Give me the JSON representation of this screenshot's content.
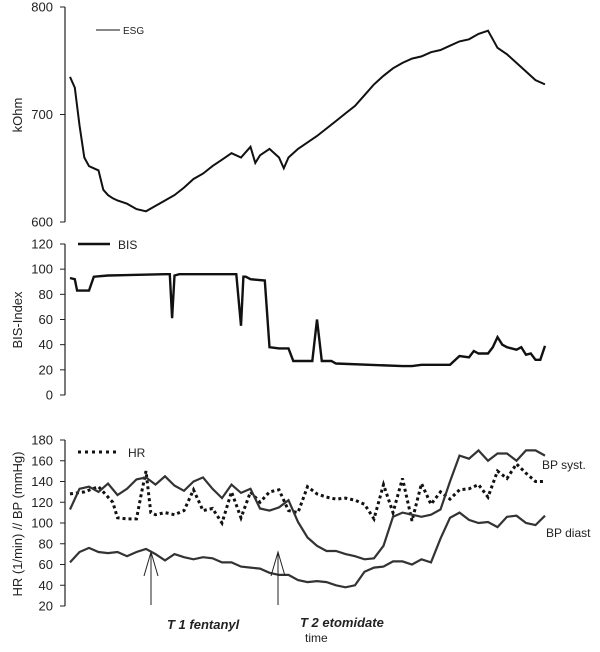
{
  "chart_data": [
    {
      "type": "line",
      "title": "",
      "ylabel": "kOhm",
      "ylim": [
        600,
        800
      ],
      "yticks": [
        600,
        700,
        800
      ],
      "xlim": [
        0,
        100
      ],
      "series": [
        {
          "name": "ESG",
          "x": [
            0,
            1,
            2,
            3,
            4,
            5,
            6,
            7,
            8,
            9,
            10,
            12,
            14,
            16,
            18,
            20,
            22,
            24,
            26,
            28,
            30,
            32,
            34,
            36,
            38,
            39,
            40,
            42,
            44,
            45,
            46,
            48,
            50,
            52,
            54,
            56,
            58,
            60,
            62,
            64,
            66,
            68,
            70,
            72,
            74,
            76,
            78,
            80,
            82,
            84,
            86,
            88,
            89,
            90,
            92,
            94,
            96,
            98,
            100
          ],
          "y": [
            735,
            725,
            690,
            660,
            652,
            650,
            648,
            630,
            625,
            622,
            620,
            617,
            612,
            610,
            615,
            620,
            625,
            632,
            640,
            645,
            652,
            658,
            664,
            660,
            670,
            655,
            662,
            668,
            660,
            650,
            660,
            668,
            674,
            680,
            687,
            694,
            701,
            708,
            718,
            728,
            736,
            743,
            748,
            752,
            754,
            758,
            760,
            764,
            768,
            770,
            775,
            778,
            770,
            762,
            756,
            748,
            740,
            732,
            728
          ]
        }
      ]
    },
    {
      "type": "line",
      "title": "",
      "ylabel": "BIS-Index",
      "ylim": [
        0,
        120
      ],
      "yticks": [
        0,
        20,
        40,
        60,
        80,
        100,
        120
      ],
      "xlim": [
        0,
        100
      ],
      "series": [
        {
          "name": "BIS",
          "x": [
            0,
            1,
            1.5,
            4,
            5,
            8,
            20,
            21,
            21.5,
            22,
            23,
            35,
            36,
            36.5,
            37,
            38,
            41,
            42,
            44,
            46,
            47,
            48,
            51,
            52,
            53,
            54,
            55,
            56,
            70,
            72,
            74,
            80,
            82,
            84,
            85,
            86,
            88,
            89,
            90,
            91,
            92,
            94,
            95,
            96,
            97,
            98,
            99,
            100
          ],
          "y": [
            93,
            92,
            83,
            83,
            94,
            95,
            96,
            96,
            61,
            95,
            96,
            96,
            55,
            94,
            94,
            92,
            91,
            38,
            37,
            37,
            27,
            27,
            27,
            60,
            27,
            27,
            27,
            25,
            23,
            23,
            24,
            24,
            31,
            30,
            35,
            33,
            33,
            38,
            46,
            40,
            38,
            36,
            38,
            32,
            33,
            28,
            28,
            39
          ]
        }
      ]
    },
    {
      "type": "line",
      "title": "",
      "xlabel": "time",
      "ylabel": "HR (1/min) // BP (mmHg)",
      "ylim": [
        20,
        180
      ],
      "yticks": [
        20,
        40,
        60,
        80,
        100,
        120,
        140,
        160,
        180
      ],
      "xlim": [
        0,
        100
      ],
      "series": [
        {
          "name": "HR",
          "x": [
            0,
            3,
            6,
            9,
            10,
            12,
            14,
            15,
            16,
            17,
            18,
            20,
            22,
            24,
            26,
            28,
            30,
            32,
            34,
            36,
            38,
            40,
            42,
            44,
            46,
            48,
            50,
            52,
            54,
            56,
            58,
            60,
            62,
            64,
            66,
            68,
            70,
            72,
            74,
            76,
            78,
            80,
            82,
            84,
            86,
            88,
            90,
            92,
            94,
            96,
            98,
            100
          ],
          "y": [
            128,
            130,
            135,
            120,
            105,
            104,
            104,
            128,
            150,
            110,
            108,
            110,
            108,
            112,
            132,
            112,
            114,
            100,
            130,
            105,
            130,
            120,
            130,
            132,
            112,
            110,
            135,
            128,
            125,
            123,
            124,
            122,
            118,
            104,
            137,
            110,
            143,
            102,
            138,
            118,
            130,
            123,
            132,
            133,
            137,
            125,
            150,
            143,
            157,
            148,
            140,
            140
          ]
        },
        {
          "name": "BP syst.",
          "x": [
            0,
            2,
            4,
            6,
            8,
            10,
            12,
            14,
            16,
            18,
            20,
            22,
            24,
            26,
            28,
            30,
            32,
            34,
            36,
            38,
            40,
            42,
            44,
            46,
            48,
            50,
            52,
            54,
            56,
            58,
            60,
            62,
            64,
            66,
            68,
            70,
            72,
            74,
            76,
            78,
            80,
            82,
            84,
            86,
            88,
            90,
            92,
            94,
            96,
            98,
            100
          ],
          "y": [
            113,
            133,
            135,
            130,
            138,
            127,
            133,
            142,
            144,
            137,
            145,
            136,
            131,
            140,
            144,
            133,
            124,
            137,
            129,
            133,
            114,
            112,
            115,
            122,
            101,
            86,
            78,
            73,
            73,
            70,
            68,
            65,
            66,
            78,
            106,
            110,
            108,
            106,
            108,
            113,
            140,
            165,
            162,
            170,
            160,
            167,
            167,
            160,
            170,
            170,
            165
          ]
        },
        {
          "name": "BP diast",
          "x": [
            0,
            2,
            4,
            6,
            8,
            10,
            12,
            14,
            16,
            18,
            20,
            22,
            24,
            26,
            28,
            30,
            32,
            34,
            36,
            38,
            40,
            42,
            44,
            46,
            48,
            50,
            52,
            54,
            56,
            58,
            60,
            62,
            64,
            66,
            68,
            70,
            72,
            74,
            76,
            78,
            80,
            82,
            84,
            86,
            88,
            90,
            92,
            94,
            96,
            98,
            100
          ],
          "y": [
            62,
            72,
            76,
            72,
            71,
            72,
            68,
            72,
            75,
            70,
            64,
            70,
            67,
            65,
            67,
            66,
            62,
            62,
            58,
            57,
            56,
            52,
            50,
            50,
            45,
            43,
            44,
            43,
            40,
            38,
            40,
            53,
            57,
            58,
            63,
            63,
            60,
            65,
            62,
            85,
            105,
            110,
            103,
            100,
            101,
            96,
            106,
            107,
            100,
            98,
            107
          ]
        }
      ],
      "annotations": [
        {
          "text": "T 1 fentanyl",
          "x": 25
        },
        {
          "text": "T 2  etomidate",
          "x": 45
        }
      ]
    }
  ],
  "colors": {
    "line": "#111111",
    "axis": "#222222"
  }
}
